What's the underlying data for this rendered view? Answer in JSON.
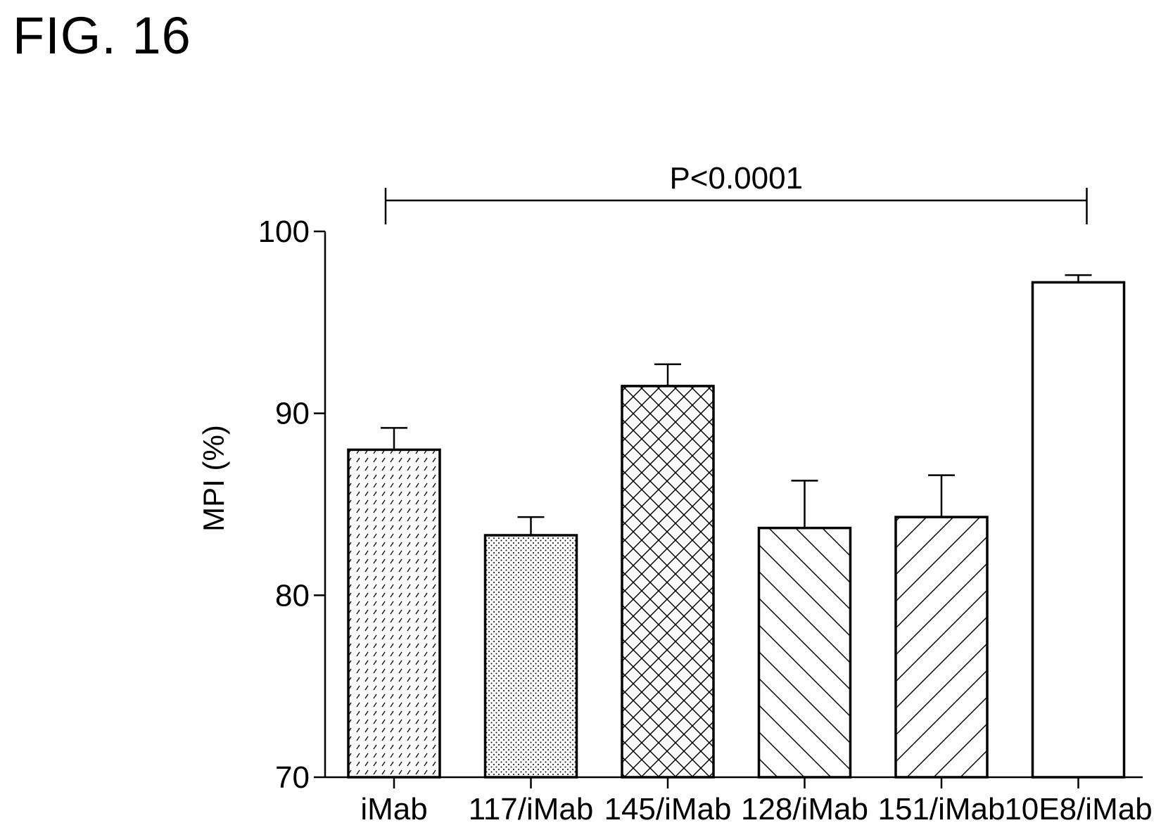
{
  "figure_label": "FIG. 16",
  "chart_data": {
    "type": "bar",
    "title": "",
    "xlabel": "",
    "ylabel": "MPI (%)",
    "ylim": [
      70,
      100
    ],
    "yticks": [
      "70",
      "80",
      "90",
      "100"
    ],
    "categories": [
      "iMab",
      "117/iMab",
      "145/iMab",
      "128/iMab",
      "151/iMab",
      "10E8/iMab"
    ],
    "values": [
      88.0,
      83.3,
      91.5,
      83.7,
      84.3,
      97.2
    ],
    "errors": [
      1.2,
      1.0,
      1.2,
      2.6,
      2.3,
      0.4
    ],
    "patterns": [
      "dashes",
      "dots",
      "crosshatch",
      "back-diagonal",
      "forward-diagonal",
      "none"
    ],
    "significance": {
      "label": "P<0.0001",
      "from": "iMab",
      "to": "10E8/iMab"
    }
  }
}
